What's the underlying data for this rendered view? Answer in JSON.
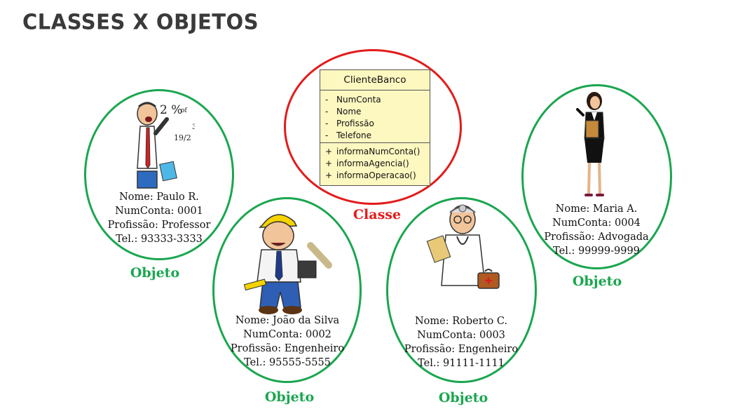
{
  "title": "CLASSES X OBJETOS",
  "colors": {
    "object_border": "#1aa64f",
    "class_border": "#e31b1b",
    "uml_fill": "#fdf7c0"
  },
  "class": {
    "caption": "Classe",
    "name": "ClienteBanco",
    "attributes": [
      {
        "vis": "-",
        "name": "NumConta"
      },
      {
        "vis": "-",
        "name": "Nome"
      },
      {
        "vis": "-",
        "name": "Profissão"
      },
      {
        "vis": "-",
        "name": "Telefone"
      }
    ],
    "methods": [
      {
        "vis": "+",
        "name": "informaNumConta()"
      },
      {
        "vis": "+",
        "name": "informaAgencia()"
      },
      {
        "vis": "+",
        "name": "informaOperacao()"
      }
    ]
  },
  "objects": [
    {
      "caption": "Objeto",
      "icon": "professor-icon",
      "lines": [
        "Nome: Paulo R.",
        "NumConta: 0001",
        "Profissão: Professor",
        "Tel.: 93333-3333"
      ]
    },
    {
      "caption": "Objeto",
      "icon": "engineer-icon",
      "lines": [
        "Nome: João da Silva",
        "NumConta: 0002",
        "Profissão: Engenheiro",
        "Tel.: 95555-5555"
      ]
    },
    {
      "caption": "Objeto",
      "icon": "doctor-icon",
      "lines": [
        "Nome: Roberto C.",
        "NumConta: 0003",
        "Profissão: Engenheiro",
        "Tel.: 91111-1111"
      ]
    },
    {
      "caption": "Objeto",
      "icon": "lawyer-icon",
      "lines": [
        "Nome: Maria A.",
        "NumConta: 0004",
        "Profissão: Advogada",
        "Tel.: 99999-9999"
      ]
    }
  ],
  "board_text": {
    "t1": "2 %",
    "t2": "of",
    "t3": "3",
    "t4": "19/2"
  }
}
